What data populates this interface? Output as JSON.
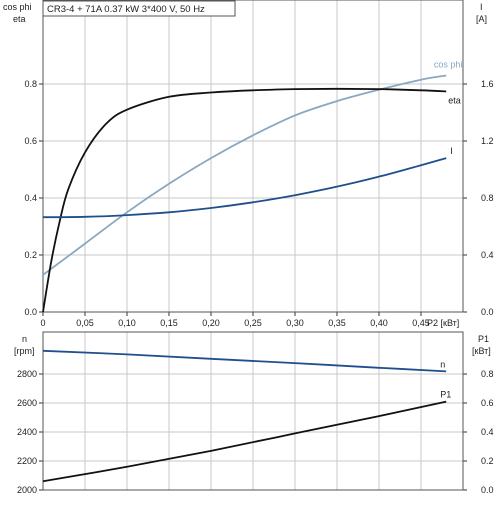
{
  "header": {
    "title": "CR3-4 + 71A   0.37 kW   3*400 V, 50 Hz"
  },
  "chart_data": [
    {
      "type": "line",
      "name": "top",
      "x_ticks": [
        0,
        0.05,
        0.1,
        0.15,
        0.2,
        0.25,
        0.3,
        0.35,
        0.4,
        0.45
      ],
      "x_tick_labels": [
        "0",
        "0,05",
        "0,10",
        "0,15",
        "0,20",
        "0,25",
        "0,30",
        "0,35",
        "0,40",
        "0,45"
      ],
      "xlim": [
        0,
        0.5
      ],
      "xlabel": "P2 [кВт]",
      "y_left": {
        "label_lines": [
          "cos phi",
          "eta"
        ],
        "lim": [
          0,
          1
        ],
        "ticks": [
          0,
          0.2,
          0.4,
          0.6,
          0.8
        ],
        "tick_labels": [
          "0.0",
          "0.2",
          "0.4",
          "0.6",
          "0.8"
        ]
      },
      "y_right": {
        "label_lines": [
          "I",
          "[A]"
        ],
        "lim": [
          0,
          2
        ],
        "ticks": [
          0,
          0.4,
          0.8,
          1.2,
          1.6
        ],
        "tick_labels": [
          "0.0",
          "0.4",
          "0.8",
          "1.2",
          "1.6"
        ]
      },
      "grid": true,
      "series": [
        {
          "name": "cos phi",
          "axis": "left",
          "color": "#8aa7c2",
          "x": [
            0,
            0.05,
            0.1,
            0.15,
            0.2,
            0.25,
            0.3,
            0.35,
            0.4,
            0.45,
            0.48
          ],
          "y": [
            0.13,
            0.24,
            0.35,
            0.45,
            0.54,
            0.62,
            0.69,
            0.74,
            0.78,
            0.815,
            0.83
          ]
        },
        {
          "name": "eta",
          "axis": "left",
          "color": "#111111",
          "x": [
            0,
            0.01,
            0.02,
            0.03,
            0.05,
            0.075,
            0.1,
            0.15,
            0.2,
            0.25,
            0.3,
            0.35,
            0.4,
            0.45,
            0.48
          ],
          "y": [
            0,
            0.18,
            0.32,
            0.43,
            0.56,
            0.66,
            0.71,
            0.755,
            0.77,
            0.778,
            0.782,
            0.783,
            0.782,
            0.778,
            0.774
          ]
        },
        {
          "name": "I",
          "axis": "right",
          "color": "#1f4f8c",
          "x": [
            0,
            0.05,
            0.1,
            0.15,
            0.2,
            0.25,
            0.3,
            0.35,
            0.4,
            0.45,
            0.48
          ],
          "y": [
            0.665,
            0.668,
            0.68,
            0.7,
            0.73,
            0.77,
            0.82,
            0.88,
            0.95,
            1.03,
            1.08
          ]
        }
      ]
    },
    {
      "type": "line",
      "name": "bottom",
      "xlim": [
        0,
        0.5
      ],
      "y_left": {
        "label_lines": [
          "n",
          "[rpm]"
        ],
        "lim": [
          2000,
          3000
        ],
        "ticks": [
          2000,
          2200,
          2400,
          2600,
          2800
        ],
        "tick_labels": [
          "2000",
          "2200",
          "2400",
          "2600",
          "2800"
        ]
      },
      "y_right": {
        "label_lines": [
          "P1",
          "[кВт]"
        ],
        "lim": [
          0,
          1
        ],
        "ticks": [
          0,
          0.2,
          0.4,
          0.6,
          0.8
        ],
        "tick_labels": [
          "0.0",
          "0.2",
          "0.4",
          "0.6",
          "0.8"
        ]
      },
      "grid": true,
      "series": [
        {
          "name": "n",
          "axis": "left",
          "color": "#1f4f8c",
          "x": [
            0,
            0.1,
            0.2,
            0.3,
            0.4,
            0.48
          ],
          "y": [
            2960,
            2935,
            2905,
            2875,
            2843,
            2818
          ]
        },
        {
          "name": "P1",
          "axis": "right",
          "color": "#111111",
          "x": [
            0,
            0.1,
            0.2,
            0.3,
            0.4,
            0.48
          ],
          "y": [
            0.06,
            0.16,
            0.27,
            0.39,
            0.51,
            0.61
          ]
        }
      ]
    }
  ]
}
